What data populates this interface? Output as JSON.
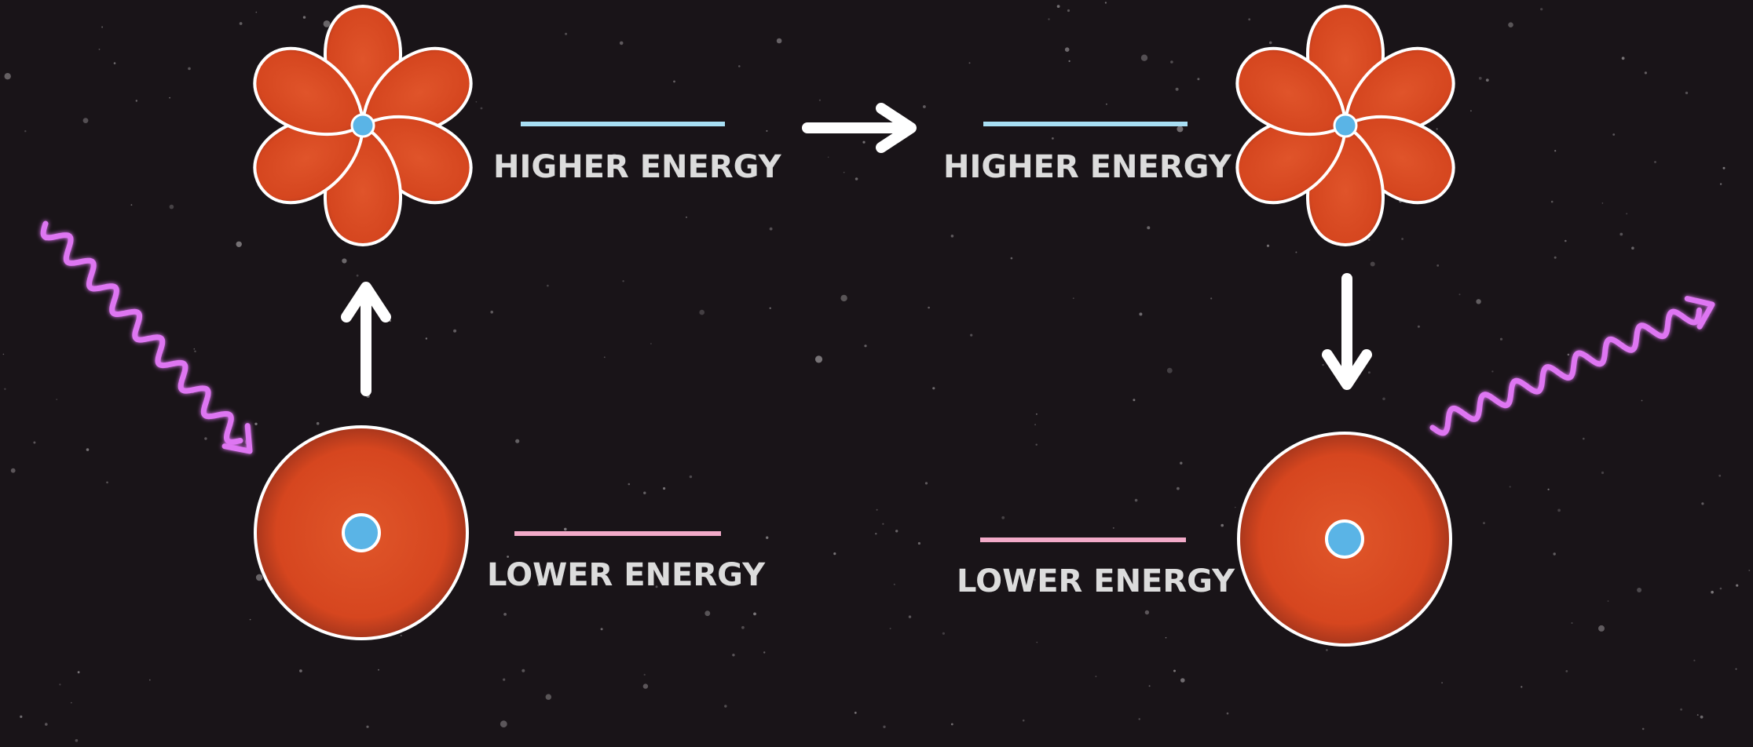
{
  "labels": {
    "higher_left": "HIGHER ENERGY",
    "lower_left": "LOWER ENERGY",
    "higher_right": "HIGHER ENERGY",
    "lower_right": "LOWER ENERGY"
  },
  "colors": {
    "background": "#191418",
    "orbital_fill": "#d84a22",
    "orbital_outline": "#ffffff",
    "nucleus": "#5ab4e6",
    "higher_level_line": "#a8dff4",
    "lower_level_line": "#f2aac8",
    "photon": "#de76f2",
    "arrow": "#ffffff"
  },
  "icons": {
    "absorbed_photon": "wavy-arrow",
    "emitted_photon": "wavy-arrow",
    "excited_orbital": "d-orbital-lobes",
    "ground_orbital": "s-orbital-sphere"
  }
}
